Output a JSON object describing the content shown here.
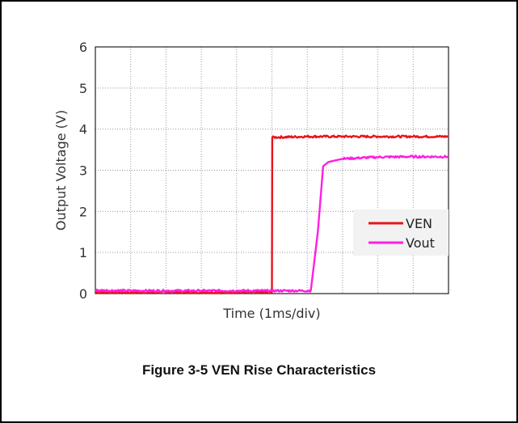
{
  "caption": "Figure 3-5 VEN Rise Characteristics",
  "chart_data": {
    "type": "line",
    "title": "",
    "xlabel": "Time (1ms/div)",
    "ylabel": "Output Voltage (V)",
    "ylim": [
      0,
      6
    ],
    "yticks": [
      0,
      1,
      2,
      3,
      4,
      5,
      6
    ],
    "xlim": [
      0,
      10
    ],
    "x_divisions": 10,
    "grid": true,
    "legend_position": "lower-right",
    "series": [
      {
        "name": "VEN",
        "color": "#e8141c",
        "x": [
          0,
          1,
          2,
          3,
          4,
          5,
          5.0,
          5.01,
          6,
          7,
          8,
          9,
          10
        ],
        "values": [
          0.03,
          0.03,
          0.03,
          0.03,
          0.03,
          0.03,
          0.03,
          3.8,
          3.82,
          3.82,
          3.82,
          3.82,
          3.82
        ]
      },
      {
        "name": "Vout",
        "color": "#ff1fe0",
        "x": [
          0,
          1,
          2,
          3,
          4,
          5,
          6.1,
          6.3,
          6.45,
          6.6,
          7.0,
          8,
          9,
          10
        ],
        "values": [
          0.08,
          0.07,
          0.07,
          0.07,
          0.07,
          0.07,
          0.07,
          1.5,
          3.1,
          3.2,
          3.28,
          3.32,
          3.33,
          3.33
        ]
      }
    ]
  }
}
